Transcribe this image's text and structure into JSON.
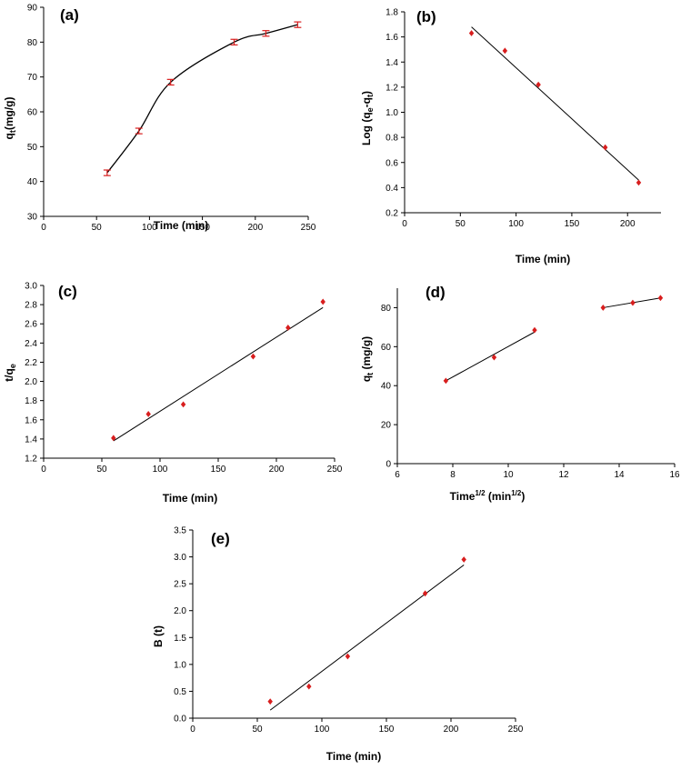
{
  "chart_data": [
    {
      "panel_label": "(a)",
      "type": "line",
      "xlabel": "Time (min)",
      "ylabel_main": "q",
      "ylabel_sub": "t",
      "ylabel_rest": "(mg/g)",
      "xlim": [
        0,
        250
      ],
      "ylim": [
        30,
        90
      ],
      "xticks": [
        0,
        50,
        100,
        150,
        200,
        250
      ],
      "yticks": [
        30,
        40,
        50,
        60,
        70,
        80,
        90
      ],
      "grid": false,
      "series": [
        {
          "x": [
            60,
            90,
            120,
            180,
            210,
            240
          ],
          "y": [
            42.5,
            54.5,
            68.5,
            80,
            82.5,
            85
          ],
          "error": 0.8,
          "smooth_line": true
        }
      ]
    },
    {
      "panel_label": "(b)",
      "type": "scatter",
      "xlabel": "Time (min)",
      "ylabel_main": "Log (q",
      "ylabel_sub1": "e",
      "ylabel_mid": "-q",
      "ylabel_sub2": "t",
      "ylabel_end": ")",
      "xlim": [
        0,
        230
      ],
      "ylim": [
        0.2,
        1.8
      ],
      "xticks": [
        0,
        50,
        100,
        150,
        200
      ],
      "yticks": [
        0.2,
        0.4,
        0.6,
        0.8,
        1.0,
        1.2,
        1.4,
        1.6,
        1.8
      ],
      "ytick_decimals": 1,
      "grid": false,
      "series": [
        {
          "x": [
            60,
            90,
            120,
            180,
            210
          ],
          "y": [
            1.63,
            1.49,
            1.22,
            0.72,
            0.44
          ]
        }
      ],
      "fit_line": {
        "x": [
          60,
          210
        ],
        "y": [
          1.68,
          0.46
        ]
      }
    },
    {
      "panel_label": "(c)",
      "type": "scatter",
      "xlabel": "Time (min)",
      "ylabel_main": "t/q",
      "ylabel_sub": "e",
      "xlim": [
        0,
        250
      ],
      "ylim": [
        1.2,
        3.0
      ],
      "xticks": [
        0,
        50,
        100,
        150,
        200,
        250
      ],
      "yticks": [
        1.2,
        1.4,
        1.6,
        1.8,
        2.0,
        2.2,
        2.4,
        2.6,
        2.8,
        3.0
      ],
      "ytick_decimals": 1,
      "grid": false,
      "series": [
        {
          "x": [
            60,
            90,
            120,
            180,
            210,
            240
          ],
          "y": [
            1.41,
            1.66,
            1.76,
            2.26,
            2.56,
            2.83
          ]
        }
      ],
      "fit_line": {
        "x": [
          60,
          240
        ],
        "y": [
          1.38,
          2.77
        ]
      }
    },
    {
      "panel_label": "(d)",
      "type": "scatter",
      "xlabel_main": "Time",
      "xlabel_sup1": "1/2",
      "xlabel_mid": " (min",
      "xlabel_sup2": "1/2",
      "xlabel_end": ")",
      "ylabel_main": "q",
      "ylabel_sub": "t",
      "ylabel_rest": " (mg/g)",
      "xlim": [
        6,
        16
      ],
      "ylim": [
        0,
        90
      ],
      "xticks": [
        6,
        8,
        10,
        12,
        14,
        16
      ],
      "yticks": [
        0,
        20,
        40,
        60,
        80
      ],
      "grid": false,
      "series": [
        {
          "x": [
            7.75,
            9.49,
            10.95,
            13.42,
            14.49,
            15.49
          ],
          "y": [
            42.5,
            54.5,
            68.5,
            80,
            82.5,
            85
          ]
        }
      ],
      "fit_lines": [
        {
          "x": [
            7.75,
            10.95
          ],
          "y": [
            42.5,
            67.5
          ]
        },
        {
          "x": [
            13.42,
            15.49
          ],
          "y": [
            80,
            85
          ]
        }
      ]
    },
    {
      "panel_label": "(e)",
      "type": "scatter",
      "xlabel": "Time (min)",
      "ylabel_main": "B (t)",
      "xlim": [
        0,
        250
      ],
      "ylim": [
        0,
        3.5
      ],
      "xticks": [
        0,
        50,
        100,
        150,
        200,
        250
      ],
      "yticks": [
        0,
        0.5,
        1.0,
        1.5,
        2.0,
        2.5,
        3.0,
        3.5
      ],
      "ytick_decimals": 1,
      "grid": false,
      "series": [
        {
          "x": [
            60,
            90,
            120,
            180,
            210
          ],
          "y": [
            0.31,
            0.59,
            1.15,
            2.32,
            2.95
          ]
        }
      ],
      "fit_line": {
        "x": [
          60,
          210
        ],
        "y": [
          0.15,
          2.85
        ]
      }
    }
  ],
  "colors": {
    "marker": "#d81e1e",
    "axis": "#000000"
  }
}
